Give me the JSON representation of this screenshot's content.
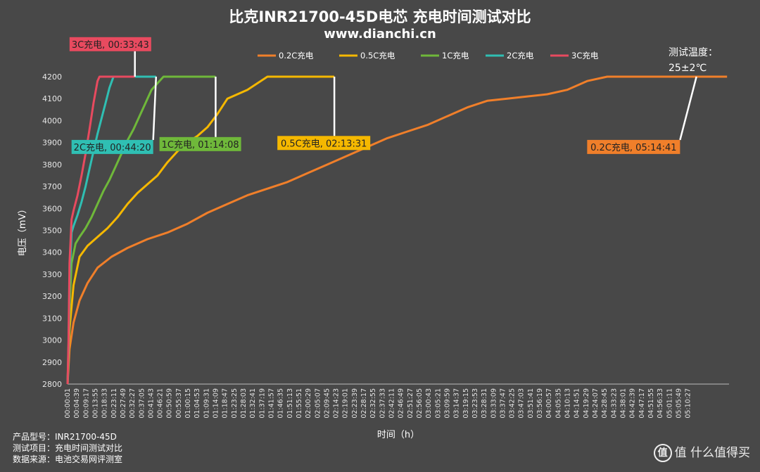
{
  "header": {
    "title": "比克INR21700-45D电芯 充电时间测试对比",
    "subtitle": "www.dianchi.cn",
    "temp_line1": "测试温度：",
    "temp_line2": "25±2℃"
  },
  "footer": {
    "line1": "产品型号：INR21700-45D",
    "line2": "测试项目：充电时间测试对比",
    "line3": "数据来源：电池交易网评测室"
  },
  "watermark": {
    "text": "值 什么值得买",
    "icon": "zhi-logo-icon"
  },
  "chart_data": {
    "type": "line",
    "xlabel": "时间（h）",
    "ylabel": "电压（mV）",
    "ylim": [
      2800,
      4200
    ],
    "yticks": [
      2800,
      2900,
      3000,
      3100,
      3200,
      3300,
      3400,
      3500,
      3600,
      3700,
      3800,
      3900,
      4000,
      4100,
      4200
    ],
    "xlim_min": [
      1,
      331
    ],
    "xtick_labels": [
      "00:00:01",
      "00:04:39",
      "00:09:17",
      "00:13:55",
      "00:18:33",
      "00:23:11",
      "00:27:49",
      "00:32:27",
      "00:37:05",
      "00:41:43",
      "00:46:21",
      "00:50:59",
      "00:55:37",
      "01:00:15",
      "01:04:53",
      "01:09:31",
      "01:14:09",
      "01:18:47",
      "01:23:25",
      "01:28:03",
      "01:32:41",
      "01:37:19",
      "01:41:57",
      "01:46:35",
      "01:51:13",
      "01:55:51",
      "02:00:29",
      "02:05:07",
      "02:09:45",
      "02:14:23",
      "02:19:01",
      "02:23:39",
      "02:28:17",
      "02:32:55",
      "02:37:33",
      "02:42:11",
      "02:46:49",
      "02:51:27",
      "02:56:05",
      "03:00:43",
      "03:05:21",
      "03:09:59",
      "03:14:37",
      "03:19:15",
      "03:23:53",
      "03:28:31",
      "03:33:09",
      "03:37:47",
      "03:42:25",
      "03:47:03",
      "03:51:41",
      "03:56:19",
      "04:00:57",
      "04:05:35",
      "04:10:13",
      "04:14:51",
      "04:19:29",
      "04:24:07",
      "04:28:45",
      "04:33:23",
      "04:38:01",
      "04:42:39",
      "04:47:17",
      "04:51:55",
      "04:56:33",
      "05:01:11",
      "05:05:49",
      "05:10:27"
    ],
    "grid": false,
    "legend_position": "top",
    "series": [
      {
        "name": "0.2C充电",
        "color": "#f07f2a",
        "x": [
          0,
          1,
          3,
          6,
          10,
          15,
          22,
          30,
          40,
          50,
          60,
          70,
          80,
          90,
          100,
          110,
          120,
          130,
          140,
          150,
          160,
          170,
          180,
          190,
          200,
          210,
          220,
          230,
          240,
          250,
          260,
          270,
          280,
          290,
          300,
          305,
          310,
          314.7,
          330
        ],
        "y": [
          2800,
          2960,
          3080,
          3180,
          3260,
          3330,
          3380,
          3420,
          3460,
          3490,
          3530,
          3580,
          3620,
          3660,
          3690,
          3720,
          3760,
          3800,
          3840,
          3880,
          3920,
          3950,
          3980,
          4020,
          4060,
          4090,
          4100,
          4110,
          4120,
          4140,
          4180,
          4200,
          4200,
          4200,
          4200,
          4200,
          4200,
          4200,
          4200
        ]
      },
      {
        "name": "0.5C充电",
        "color": "#f5b800",
        "x": [
          0,
          1,
          3,
          6,
          10,
          15,
          20,
          25,
          30,
          35,
          40,
          45,
          50,
          55,
          60,
          65,
          70,
          75,
          80,
          85,
          90,
          95,
          100,
          105,
          110,
          115,
          120,
          125,
          130,
          133.5
        ],
        "y": [
          2800,
          3050,
          3250,
          3380,
          3430,
          3470,
          3510,
          3560,
          3620,
          3670,
          3710,
          3750,
          3810,
          3860,
          3900,
          3930,
          3970,
          4030,
          4100,
          4120,
          4140,
          4170,
          4200,
          4200,
          4200,
          4200,
          4200,
          4200,
          4200,
          4200
        ]
      },
      {
        "name": "1C充电",
        "color": "#6fb83a",
        "x": [
          0,
          1,
          2,
          4,
          6,
          9,
          12,
          15,
          18,
          21,
          24,
          27,
          30,
          33,
          36,
          39,
          42,
          45,
          48,
          51,
          54,
          57,
          60,
          63,
          66,
          69,
          72,
          74.1
        ],
        "y": [
          2800,
          3150,
          3350,
          3440,
          3470,
          3510,
          3560,
          3620,
          3680,
          3730,
          3790,
          3850,
          3910,
          3960,
          4020,
          4080,
          4140,
          4170,
          4200,
          4200,
          4200,
          4200,
          4200,
          4200,
          4200,
          4200,
          4200,
          4200
        ]
      },
      {
        "name": "2C充电",
        "color": "#2fbfb3",
        "x": [
          0,
          0.5,
          1,
          2,
          3,
          5,
          7,
          9,
          11,
          13,
          15,
          17,
          19,
          21,
          23,
          25,
          27,
          29,
          31,
          33,
          35,
          37,
          39,
          41,
          43,
          44.3
        ],
        "y": [
          2800,
          2950,
          3280,
          3490,
          3520,
          3570,
          3630,
          3700,
          3780,
          3860,
          3940,
          4010,
          4080,
          4150,
          4200,
          4200,
          4200,
          4200,
          4200,
          4200,
          4200,
          4200,
          4200,
          4200,
          4200,
          4200
        ]
      },
      {
        "name": "3C充电",
        "color": "#e84a5f",
        "x": [
          0,
          0.5,
          1,
          2,
          3,
          5,
          7,
          9,
          11,
          13,
          15,
          16,
          18,
          20,
          22,
          24,
          26,
          28,
          30,
          32,
          33.7
        ],
        "y": [
          2800,
          3000,
          3350,
          3550,
          3590,
          3660,
          3750,
          3850,
          3960,
          4080,
          4180,
          4200,
          4200,
          4200,
          4200,
          4200,
          4200,
          4200,
          4200,
          4200,
          4200
        ]
      }
    ],
    "annotations": [
      {
        "text": "3C充电, 00:33:43",
        "series": "3C充电",
        "at_x": 33.7,
        "at_y": 4200,
        "label_x": 1,
        "label_y": 4380,
        "color": "#e84a5f"
      },
      {
        "text": "2C充电, 00:44:20",
        "series": "2C充电",
        "at_x": 44.3,
        "at_y": 4200,
        "label_x": 2,
        "label_y": 3912,
        "color": "#2fbfb3"
      },
      {
        "text": "1C充电, 01:14:08",
        "series": "1C充电",
        "at_x": 74.1,
        "at_y": 4200,
        "label_x": 46,
        "label_y": 3925,
        "color": "#6fb83a"
      },
      {
        "text": "0.5C充电, 02:13:31",
        "series": "0.5C充电",
        "at_x": 133.5,
        "at_y": 4200,
        "label_x": 105,
        "label_y": 3930,
        "color": "#f5b800"
      },
      {
        "text": "0.2C充电, 05:14:41",
        "series": "0.2C充电",
        "at_x": 314.7,
        "at_y": 4200,
        "label_x": 260,
        "label_y": 3912,
        "color": "#f07f2a"
      }
    ]
  }
}
